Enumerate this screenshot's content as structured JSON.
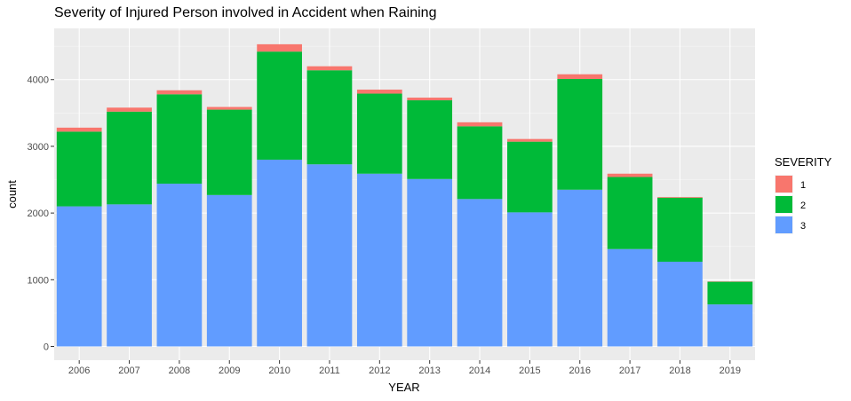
{
  "chart_data": {
    "type": "bar",
    "stacked": true,
    "title": "Severity of Injured Person involved in Accident when Raining",
    "xlabel": "YEAR",
    "ylabel": "count",
    "categories": [
      "2006",
      "2007",
      "2008",
      "2009",
      "2010",
      "2011",
      "2012",
      "2013",
      "2014",
      "2015",
      "2016",
      "2017",
      "2018",
      "2019"
    ],
    "ylim": [
      0,
      4700
    ],
    "yticks": [
      0,
      1000,
      2000,
      3000,
      4000
    ],
    "grid": true,
    "legend": {
      "title": "SEVERITY",
      "position": "right"
    },
    "series": [
      {
        "name": "3",
        "color": "#619CFF",
        "values": [
          2100,
          2130,
          2440,
          2270,
          2800,
          2730,
          2590,
          2510,
          2210,
          2010,
          2350,
          1460,
          1270,
          630
        ]
      },
      {
        "name": "2",
        "color": "#00BA38",
        "values": [
          1120,
          1390,
          1340,
          1280,
          1620,
          1410,
          1200,
          1180,
          1090,
          1060,
          1660,
          1080,
          960,
          340
        ]
      },
      {
        "name": "1",
        "color": "#F8766D",
        "values": [
          60,
          60,
          60,
          40,
          110,
          60,
          60,
          40,
          60,
          40,
          70,
          50,
          10,
          5
        ]
      }
    ]
  }
}
